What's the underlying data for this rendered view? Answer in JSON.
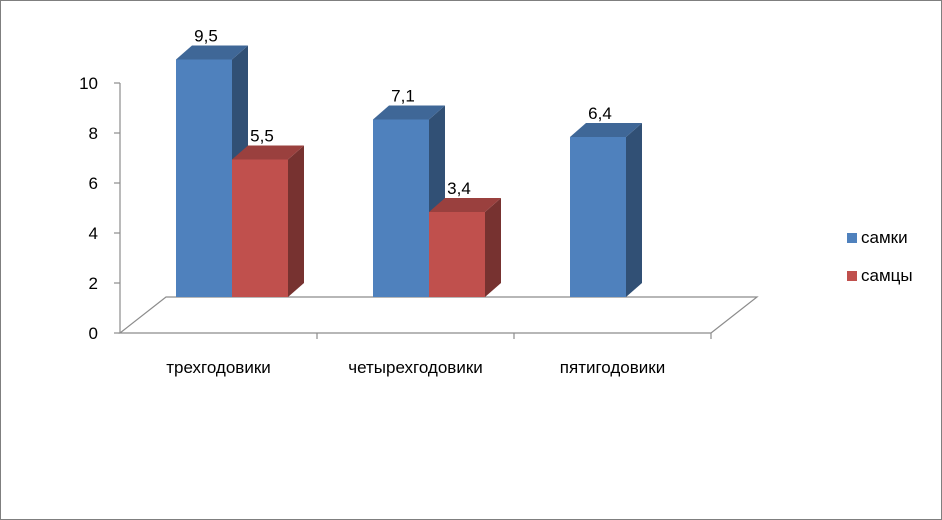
{
  "chart_data": {
    "type": "bar",
    "categories": [
      "трехгодовики",
      "четырехгодовики",
      "пятигодовики"
    ],
    "series": [
      {
        "name": "самки",
        "values": [
          9.5,
          7.1,
          6.4
        ],
        "labels": [
          "9,5",
          "7,1",
          "6,4"
        ],
        "color": "#4f81bd"
      },
      {
        "name": "самцы",
        "values": [
          5.5,
          3.4,
          null
        ],
        "labels": [
          "5,5",
          "3,4",
          ""
        ],
        "color": "#c0504d"
      }
    ],
    "y_ticks": [
      "0",
      "2",
      "4",
      "6",
      "8",
      "10"
    ],
    "ylim": [
      0,
      10
    ],
    "legend_position": "right",
    "three_d": true,
    "grid": false
  }
}
